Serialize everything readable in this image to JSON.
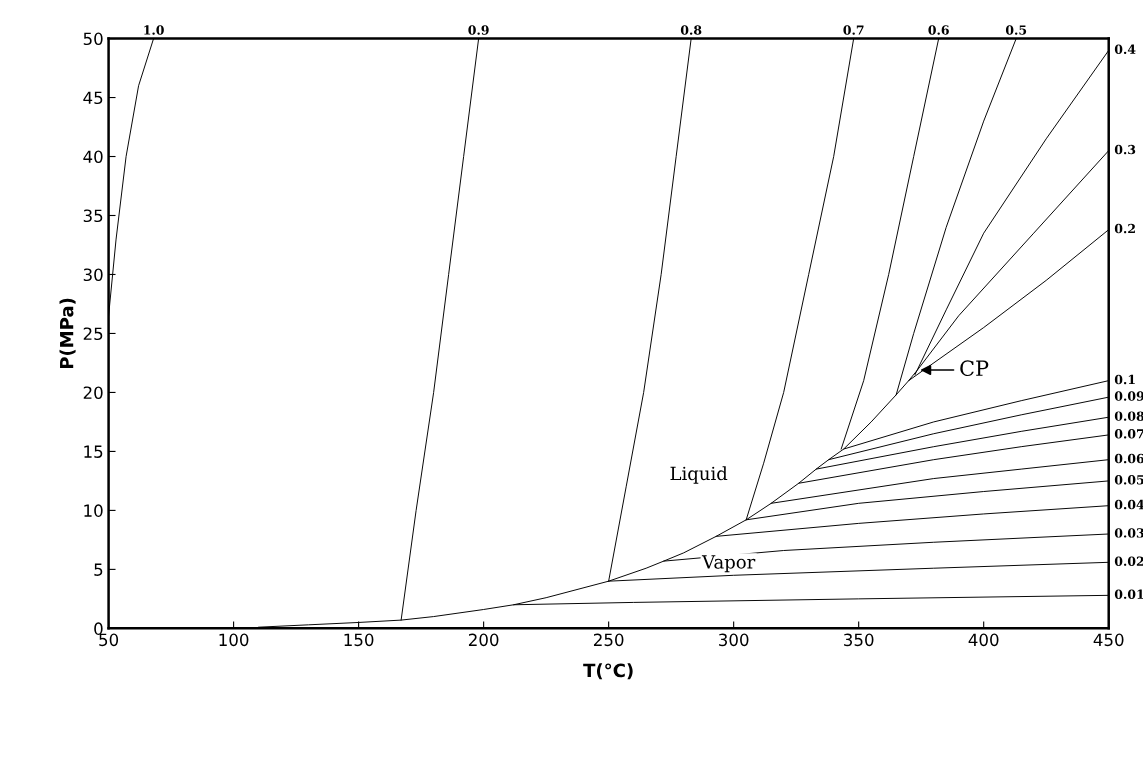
{
  "chart_data": {
    "type": "line",
    "xlabel": "T(°C)",
    "ylabel": "P(MPa)",
    "xlim": [
      50,
      450
    ],
    "ylim": [
      0,
      50
    ],
    "xticks": [
      50,
      100,
      150,
      200,
      250,
      300,
      350,
      400,
      450
    ],
    "yticks": [
      0,
      5,
      10,
      15,
      20,
      25,
      30,
      35,
      40,
      45,
      50
    ],
    "grid": false,
    "legend": false,
    "marker": "none",
    "line_style": "solid",
    "series": [
      {
        "name": "1.0",
        "color": "#000000",
        "x": [
          50,
          53,
          57,
          62,
          68
        ],
        "values": [
          26.5,
          33,
          40,
          46,
          50
        ]
      },
      {
        "name": "0.9",
        "color": "#000000",
        "x": [
          167,
          173,
          180,
          186,
          192,
          198
        ],
        "values": [
          0.7,
          10,
          20,
          30,
          40,
          50
        ]
      },
      {
        "name": "0.8",
        "color": "#000000",
        "x": [
          250,
          257,
          264,
          271,
          277,
          283
        ],
        "values": [
          4.0,
          12,
          20,
          30,
          40,
          50
        ]
      },
      {
        "name": "0.7",
        "color": "#000000",
        "x": [
          305,
          312,
          320,
          330,
          340,
          348
        ],
        "values": [
          9.2,
          14,
          20,
          30,
          40,
          50
        ]
      },
      {
        "name": "0.6",
        "color": "#000000",
        "x": [
          343,
          352,
          362,
          372,
          382
        ],
        "values": [
          15.2,
          21,
          30,
          40,
          50
        ]
      },
      {
        "name": "0.5",
        "color": "#000000",
        "x": [
          365,
          372,
          385,
          400,
          413
        ],
        "values": [
          19.8,
          25,
          34,
          43,
          50
        ]
      },
      {
        "name": "0.4",
        "color": "#000000",
        "x": [
          372.5,
          385,
          400,
          425,
          450
        ],
        "values": [
          21.5,
          27,
          33.5,
          41.5,
          49
        ]
      },
      {
        "name": "0.3",
        "color": "#000000",
        "x": [
          370,
          373.5,
          390,
          420,
          450
        ],
        "values": [
          21.0,
          21.9,
          26.5,
          33.5,
          40.5
        ]
      },
      {
        "name": "0.2",
        "color": "#000000",
        "x": [
          344,
          355,
          365,
          370,
          400,
          425,
          450
        ],
        "values": [
          15.2,
          17.5,
          19.8,
          21.0,
          25.5,
          29.5,
          33.8
        ]
      },
      {
        "name": "0.1",
        "color": "#000000",
        "x": [
          338,
          344,
          380,
          415,
          450
        ],
        "values": [
          14.3,
          15.2,
          17.5,
          19.3,
          21.0
        ]
      },
      {
        "name": "0.09",
        "color": "#000000",
        "x": [
          333,
          338,
          380,
          415,
          450
        ],
        "values": [
          13.5,
          14.3,
          16.5,
          18.1,
          19.6
        ]
      },
      {
        "name": "0.08",
        "color": "#000000",
        "x": [
          326,
          333,
          380,
          415,
          450
        ],
        "values": [
          12.3,
          13.5,
          15.4,
          16.7,
          17.9
        ]
      },
      {
        "name": "0.07",
        "color": "#000000",
        "x": [
          315,
          326,
          380,
          415,
          450
        ],
        "values": [
          10.6,
          12.3,
          14.3,
          15.4,
          16.4
        ]
      },
      {
        "name": "0.06",
        "color": "#000000",
        "x": [
          305,
          315,
          380,
          415,
          450
        ],
        "values": [
          9.2,
          10.6,
          12.7,
          13.5,
          14.3
        ]
      },
      {
        "name": "0.05",
        "color": "#000000",
        "x": [
          293,
          305,
          350,
          400,
          450
        ],
        "values": [
          7.8,
          9.2,
          10.6,
          11.6,
          12.5
        ]
      },
      {
        "name": "0.04",
        "color": "#000000",
        "x": [
          272,
          280,
          293,
          350,
          400,
          450
        ],
        "values": [
          5.7,
          6.4,
          7.8,
          8.9,
          9.7,
          10.4
        ]
      },
      {
        "name": "0.03",
        "color": "#000000",
        "x": [
          250,
          265,
          272,
          320,
          380,
          450
        ],
        "values": [
          4.0,
          5.1,
          5.7,
          6.6,
          7.3,
          8.0
        ]
      },
      {
        "name": "0.02",
        "color": "#000000",
        "x": [
          212,
          225,
          250,
          300,
          380,
          450
        ],
        "values": [
          2.0,
          2.6,
          4.0,
          4.5,
          5.1,
          5.6
        ]
      },
      {
        "name": "0.01",
        "color": "#000000",
        "x": [
          110,
          130,
          150,
          167,
          180,
          200,
          212,
          260,
          350,
          450
        ],
        "values": [
          0.1,
          0.3,
          0.5,
          0.7,
          1.0,
          1.6,
          2.0,
          2.2,
          2.5,
          2.8
        ]
      }
    ],
    "annotations": [
      "Liquid",
      "Vapor",
      {
        "text": "CP",
        "x": 373.5,
        "y": 21.9
      }
    ]
  }
}
